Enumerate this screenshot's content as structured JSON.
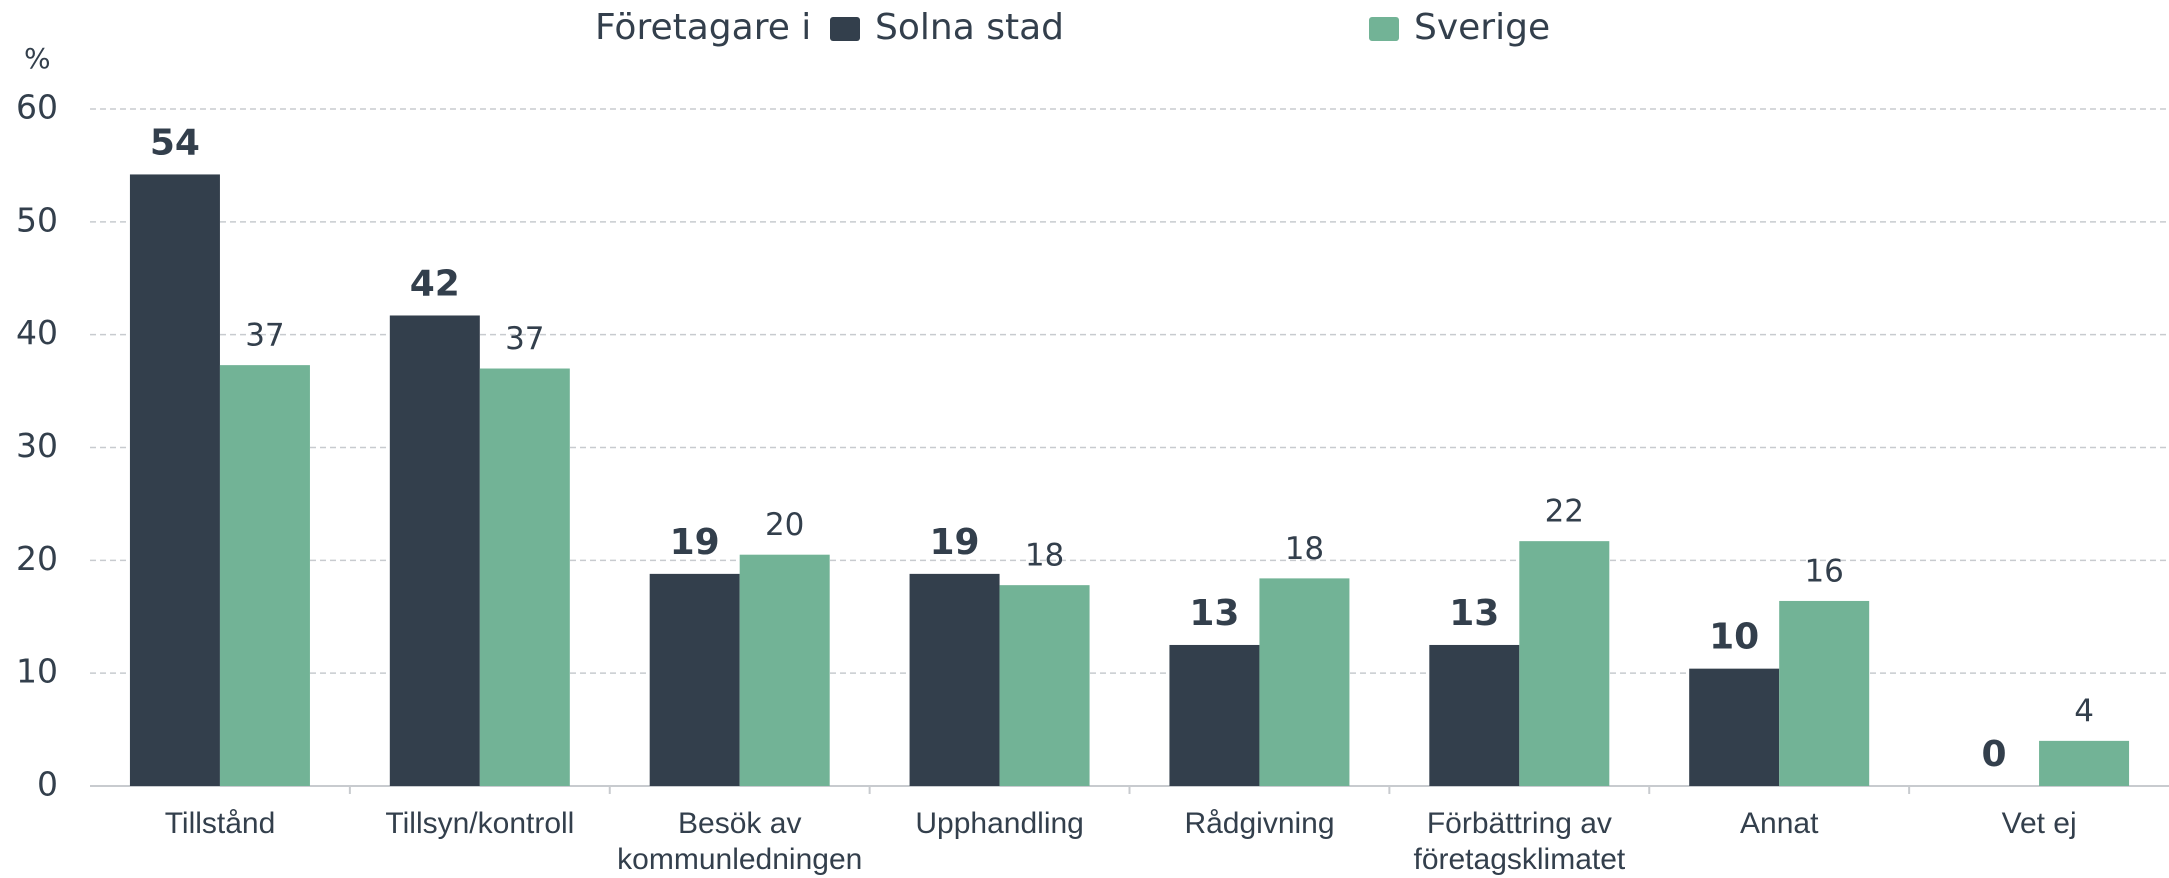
{
  "chart_data": {
    "type": "bar",
    "legend_title": "Företagare i",
    "y_axis_label": "%",
    "categories": [
      "Tillstånd",
      "Tillsyn/kontroll",
      "Besök av kommunledningen",
      "Upphandling",
      "Rådgivning",
      "Förbättring av företagsklimatet",
      "Annat",
      "Vet ej"
    ],
    "series": [
      {
        "name": "Solna stad",
        "color": "#333f4c",
        "values": [
          54.2,
          41.7,
          18.8,
          18.8,
          12.5,
          12.5,
          10.4,
          0
        ],
        "value_labels": [
          "54",
          "42",
          "19",
          "19",
          "13",
          "13",
          "10",
          "0"
        ]
      },
      {
        "name": "Sverige",
        "color": "#72b396",
        "values": [
          37.3,
          37.0,
          20.5,
          17.8,
          18.4,
          21.7,
          16.4,
          4.0
        ],
        "value_labels": [
          "37",
          "37",
          "20",
          "18",
          "18",
          "22",
          "16",
          "4"
        ]
      }
    ],
    "ylim": [
      0,
      60
    ],
    "yticks": [
      0,
      10,
      20,
      30,
      40,
      50,
      60
    ],
    "grid": true
  }
}
